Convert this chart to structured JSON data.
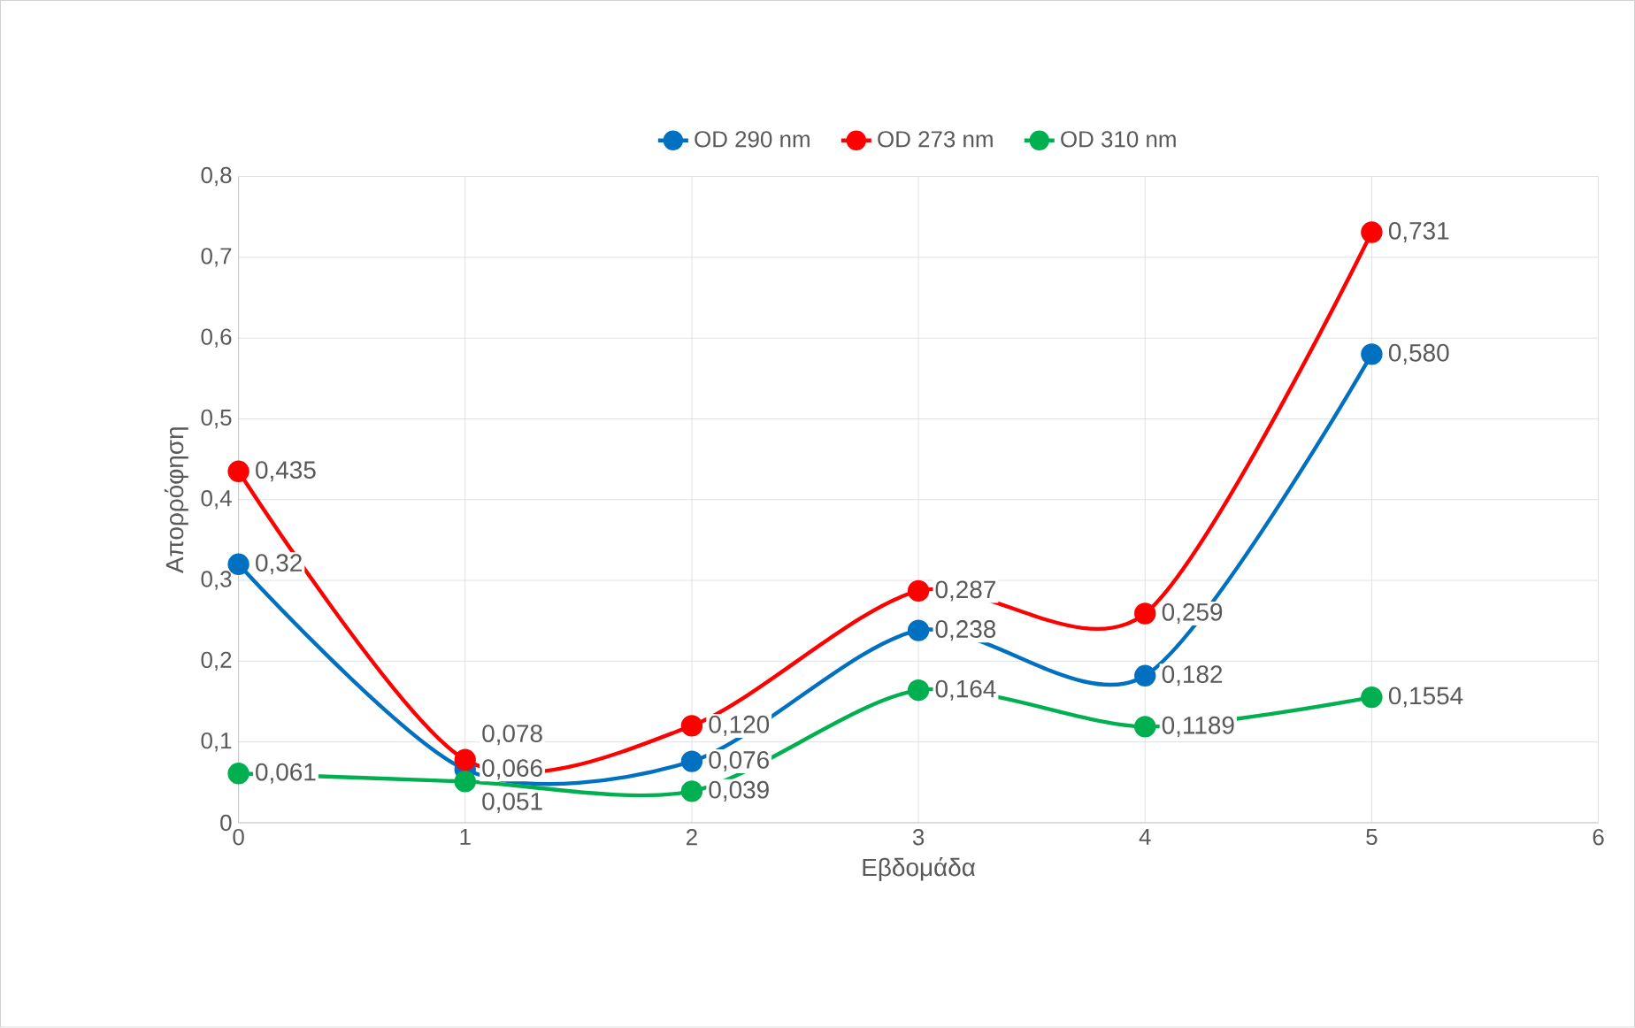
{
  "chart_data": {
    "type": "line",
    "xlabel": "Εβδομάδα",
    "ylabel": "Απορρόφηση",
    "x": [
      0,
      1,
      2,
      3,
      4,
      5
    ],
    "series": [
      {
        "name": "OD 290 nm",
        "color": "#0070c0",
        "values": [
          0.32,
          0.066,
          0.076,
          0.238,
          0.182,
          0.58
        ],
        "value_labels": [
          "0,32",
          "0,066",
          "0,076",
          "0,238",
          "0,182",
          "0,580"
        ]
      },
      {
        "name": "OD 273 nm",
        "color": "#ff0000",
        "values": [
          0.435,
          0.078,
          0.12,
          0.287,
          0.259,
          0.731
        ],
        "value_labels": [
          "0,435",
          "0,078",
          "0,120",
          "0,287",
          "0,259",
          "0,731"
        ]
      },
      {
        "name": "OD 310 nm",
        "color": "#00b050",
        "values": [
          0.061,
          0.051,
          0.039,
          0.164,
          0.1189,
          0.1554
        ],
        "value_labels": [
          "0,061",
          "0,051",
          "0,039",
          "0,164",
          "0,1189",
          "0,1554"
        ]
      }
    ],
    "xlim": [
      0,
      6
    ],
    "xticks": [
      0,
      1,
      2,
      3,
      4,
      5,
      6
    ],
    "ylim": [
      0,
      0.8
    ],
    "yticks": [
      {
        "value": 0,
        "label": "0"
      },
      {
        "value": 0.1,
        "label": "0,1"
      },
      {
        "value": 0.2,
        "label": "0,2"
      },
      {
        "value": 0.3,
        "label": "0,3"
      },
      {
        "value": 0.4,
        "label": "0,4"
      },
      {
        "value": 0.5,
        "label": "0,5"
      },
      {
        "value": 0.6,
        "label": "0,6"
      },
      {
        "value": 0.7,
        "label": "0,7"
      },
      {
        "value": 0.8,
        "label": "0,8"
      }
    ],
    "grid": true,
    "legend": "top",
    "marker": "circle",
    "line_style": "solid"
  }
}
